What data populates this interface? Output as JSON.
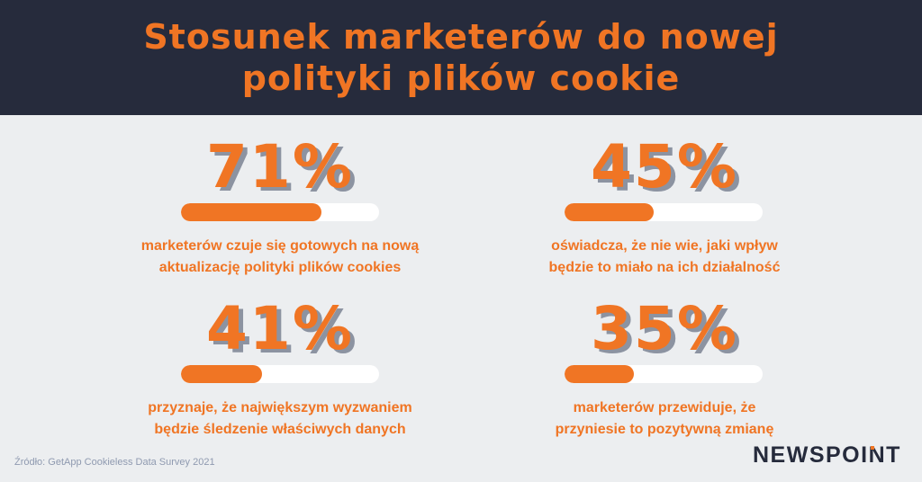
{
  "header": {
    "title_line1": "Stosunek marketerów do nowej",
    "title_line2": "polityki plików cookie"
  },
  "chart_data": {
    "type": "bar",
    "categories": [
      "marketerów czuje się gotowych na nową aktualizację polityki plików cookies",
      "oświadcza, że nie wie, jaki wpływ będzie to miało na ich działalność",
      "przyznaje, że największym wyzwaniem będzie śledzenie właściwych danych",
      "marketerów przewiduje, że przyniesie to pozytywną zmianę"
    ],
    "values": [
      71,
      45,
      41,
      35
    ],
    "title": "Stosunek marketerów do nowej polityki plików cookie",
    "ylim": [
      0,
      100
    ],
    "accent_color": "#f07524",
    "track_color": "#ffffff"
  },
  "stats": [
    {
      "value": 71,
      "pct": "71%",
      "line1": "marketerów czuje się gotowych na nową",
      "line2": "aktualizację polityki plików cookies"
    },
    {
      "value": 45,
      "pct": "45%",
      "line1": "oświadcza, że nie wie, jaki wpływ",
      "line2": "będzie to miało na ich działalność"
    },
    {
      "value": 41,
      "pct": "41%",
      "line1": "przyznaje, że największym wyzwaniem",
      "line2": "będzie śledzenie właściwych danych"
    },
    {
      "value": 35,
      "pct": "35%",
      "line1": "marketerów przewiduje, że",
      "line2": "przyniesie to pozytywną zmianę"
    }
  ],
  "footer": {
    "source": "Źródło: GetApp Cookieless Data Survey 2021",
    "logo_text": "NEWSPOINT",
    "logo_color": "#262b3c",
    "logo_accent": "#f07524"
  }
}
